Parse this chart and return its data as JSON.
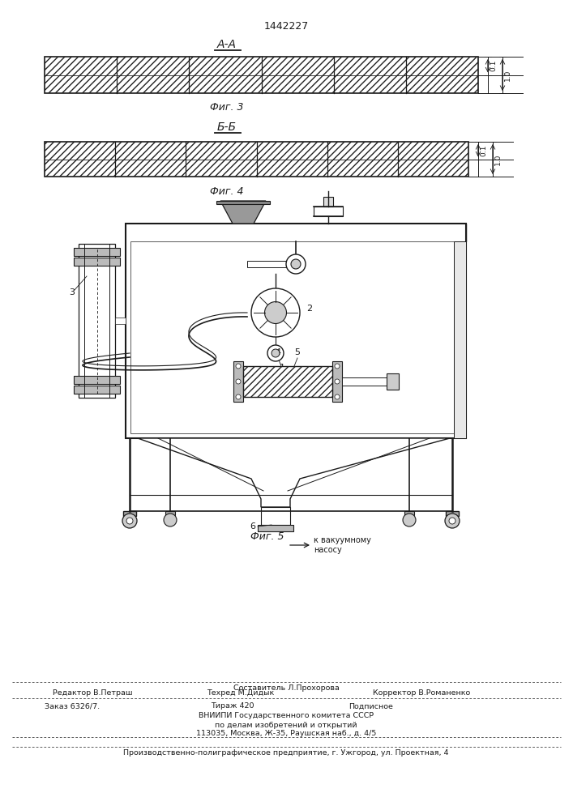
{
  "patent_number": "1442227",
  "fig3_label": "А-А",
  "fig4_label": "Б-Б",
  "fig3_caption": "Фиг. 3",
  "fig4_caption": "Фиг. 4",
  "fig5_caption": "Фиг. 5",
  "dim_label1": "0.1",
  "dim_label2": "1.0",
  "footer_sestavitel": "Составитель Л.Прохорова",
  "footer_redaktor": "Редактор В.Петраш",
  "footer_tehred": "Техред М.Дидык",
  "footer_korrektor": "Корректор В.Романенко",
  "footer_zakaz": "Заказ 6326/7.",
  "footer_tirazh": "Тираж 420",
  "footer_podpisnoe": "Подписное",
  "footer_vniip": "ВНИИПИ Государственного комитета СССР",
  "footer_po_delam": "по делам изобретений и открытий",
  "footer_address": "113035, Москва, Ж-35, Раушская наб., д. 4/5",
  "footer_predpriyatie": "Производственно-полиграфическое предприятие, г. Ужгород, ул. Проектная, 4",
  "bg_color": "#ffffff",
  "line_color": "#1a1a1a",
  "hatch_color": "#222222"
}
